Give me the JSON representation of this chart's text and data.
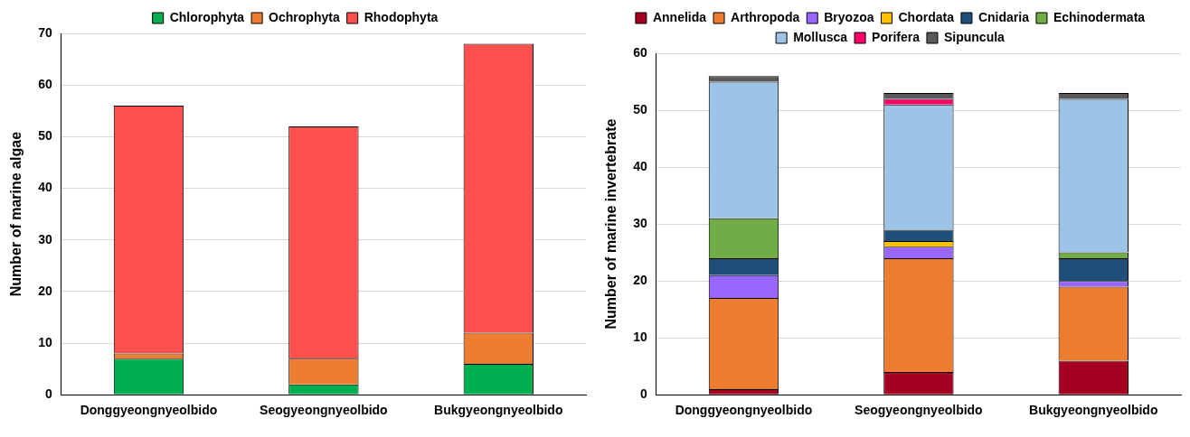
{
  "chart_data": [
    {
      "type": "bar",
      "stacked": true,
      "ylabel": "Number of marine algae",
      "categories": [
        "Donggyeongnyeolbido",
        "Seogyeongnyeolbido",
        "Bukgyeongnyeolbido"
      ],
      "ylim": [
        0,
        70
      ],
      "yticks": [
        0,
        10,
        20,
        30,
        40,
        50,
        60,
        70
      ],
      "grid": "y",
      "legend": "top",
      "series": [
        {
          "name": "Chlorophyta",
          "color": "#00b050",
          "values": [
            7,
            2,
            6
          ]
        },
        {
          "name": "Ochrophyta",
          "color": "#ed7d31",
          "values": [
            1,
            5,
            6
          ]
        },
        {
          "name": "Rhodophyta",
          "color": "#ff5050",
          "values": [
            48,
            45,
            56
          ]
        }
      ]
    },
    {
      "type": "bar",
      "stacked": true,
      "ylabel": "Number of marine invertebrate",
      "categories": [
        "Donggyeongnyeolbido",
        "Seogyeongnyeolbido",
        "Bukgyeongnyeolbido"
      ],
      "ylim": [
        0,
        60
      ],
      "yticks": [
        0,
        10,
        20,
        30,
        40,
        50,
        60
      ],
      "grid": "y",
      "legend": "top",
      "series": [
        {
          "name": "Annelida",
          "color": "#a50021",
          "values": [
            1,
            4,
            6
          ]
        },
        {
          "name": "Arthropoda",
          "color": "#ed7d31",
          "values": [
            16,
            20,
            13
          ]
        },
        {
          "name": "Bryozoa",
          "color": "#9966ff",
          "values": [
            4,
            2,
            1
          ]
        },
        {
          "name": "Chordata",
          "color": "#ffc000",
          "values": [
            0,
            1,
            0
          ]
        },
        {
          "name": "Cnidaria",
          "color": "#1f4e79",
          "values": [
            3,
            2,
            4
          ]
        },
        {
          "name": "Echinodermata",
          "color": "#70ad47",
          "values": [
            7,
            0,
            1
          ]
        },
        {
          "name": "Mollusca",
          "color": "#9dc3e6",
          "values": [
            24,
            22,
            27
          ]
        },
        {
          "name": "Porifera",
          "color": "#ff0066",
          "values": [
            0,
            1,
            0
          ]
        },
        {
          "name": "Sipuncula",
          "color": "#595959",
          "values": [
            1,
            1,
            1
          ]
        }
      ]
    }
  ]
}
